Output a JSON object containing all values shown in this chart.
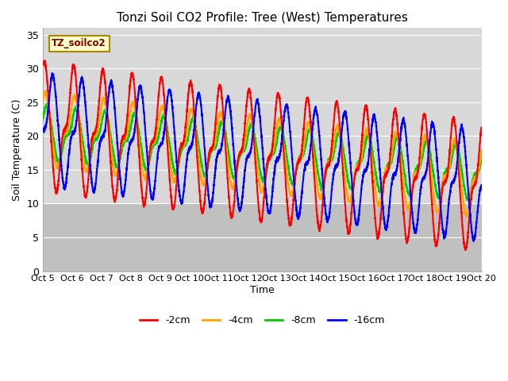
{
  "title": "Tonzi Soil CO2 Profile: Tree (West) Temperatures",
  "ylabel": "Soil Temperature (C)",
  "xlabel": "Time",
  "ylim": [
    0,
    36
  ],
  "xlim": [
    0,
    15
  ],
  "yticks": [
    0,
    5,
    10,
    15,
    20,
    25,
    30,
    35
  ],
  "xtick_labels": [
    "Oct 5",
    "Oct 6",
    "Oct 7",
    "Oct 8",
    "Oct 9",
    "Oct 10",
    "Oct 11",
    "Oct 12",
    "Oct 13",
    "Oct 14",
    "Oct 15",
    "Oct 16",
    "Oct 17",
    "Oct 18",
    "Oct 19",
    "Oct 20"
  ],
  "annotation_text": "TZ_soilco2",
  "annotation_bg": "#ffffcc",
  "annotation_border": "#aa8800",
  "colors": {
    "-2cm": "#ff0000",
    "-4cm": "#ffa500",
    "-8cm": "#00cc00",
    "-16cm": "#0000ff"
  },
  "line_width": 1.5,
  "plot_bg_upper": "#dcdcdc",
  "plot_bg_lower": "#c8c8c8",
  "band_threshold": 10.0,
  "grid_color": "#ffffff",
  "legend_labels": [
    "-2cm",
    "-4cm",
    "-8cm",
    "-16cm"
  ],
  "points_per_day": 288
}
